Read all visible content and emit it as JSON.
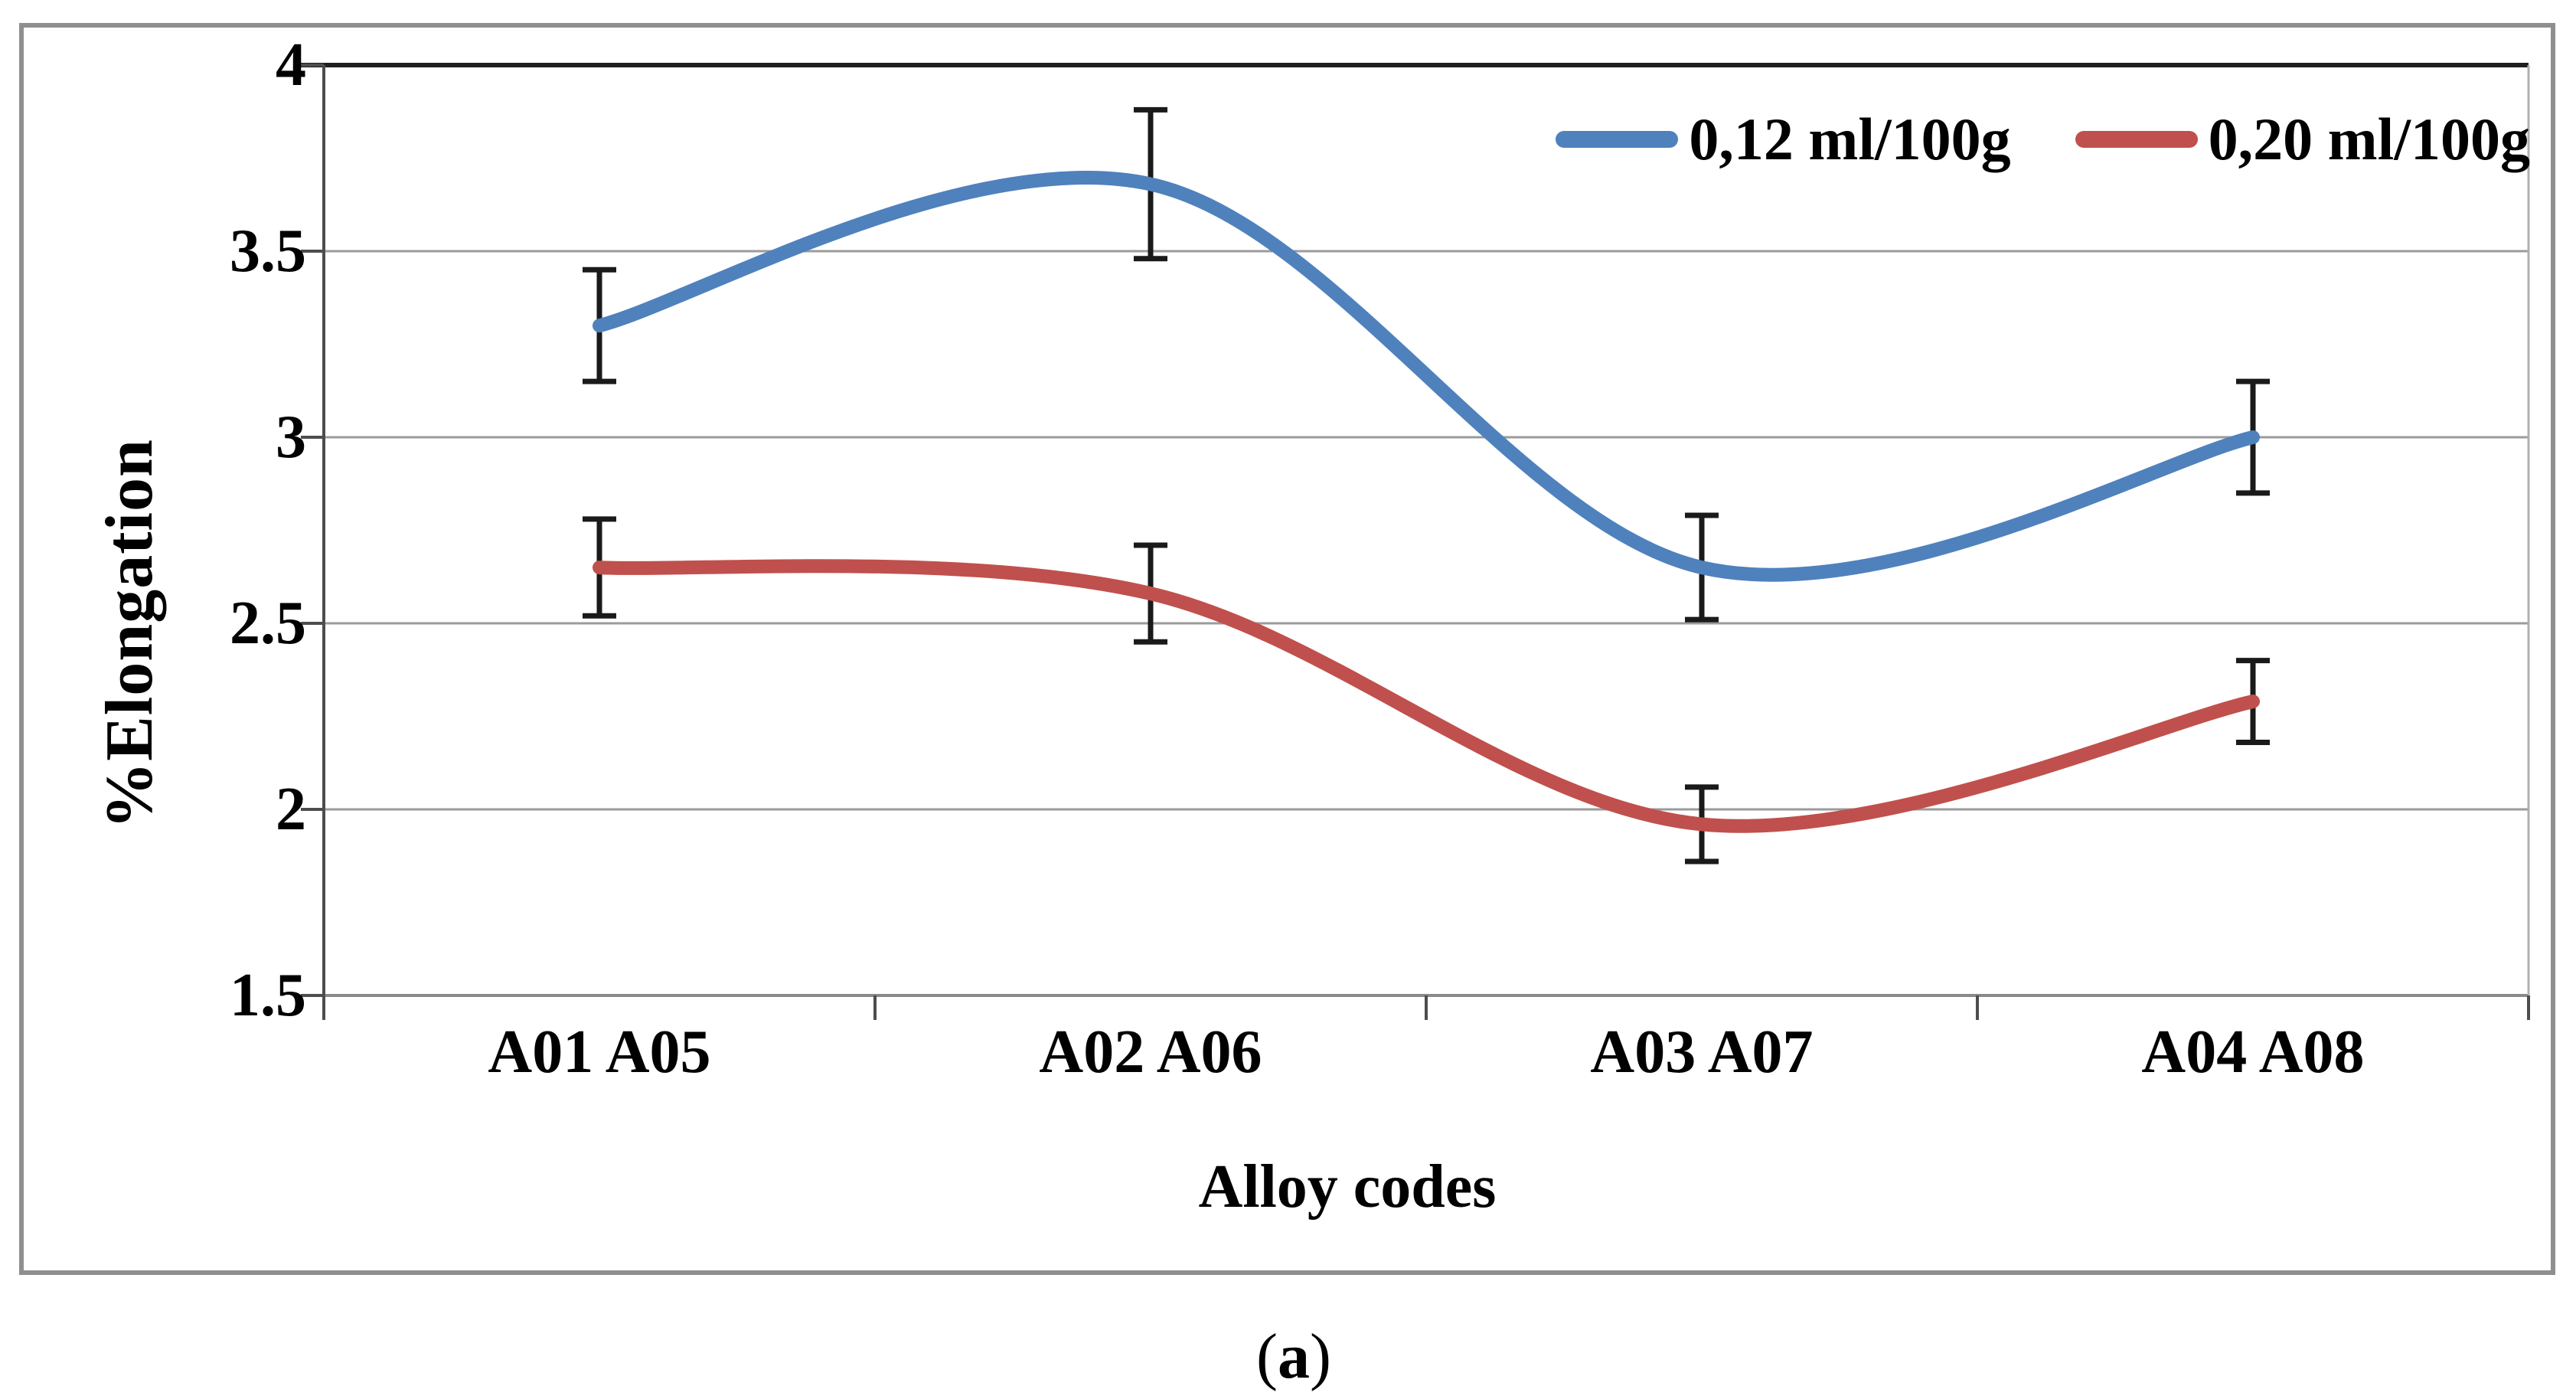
{
  "figure": {
    "caption": {
      "open": "(",
      "letter": "a",
      "close": ")"
    },
    "colors": {
      "series1": "#4F81BD",
      "series2": "#C0504D",
      "grid": "#9b9b9b",
      "baseline": "#8a8a8a",
      "top_border": "#1f1f1f",
      "axis": "#4d4d4d",
      "right_border": "#b0b0b0",
      "error_bar": "#1a1a1a",
      "frame": "#8f8f8f"
    }
  },
  "chart_data": {
    "type": "line",
    "smooth": true,
    "title": "",
    "xlabel": "Alloy codes",
    "ylabel": "%Elongation",
    "categories": [
      "A01 A05",
      "A02 A06",
      "A03 A07",
      "A04 A08"
    ],
    "y_ticks": [
      "4",
      "3.5",
      "3",
      "2.5",
      "2",
      "1.5"
    ],
    "y_tick_values": [
      4,
      3.5,
      3,
      2.5,
      2,
      1.5
    ],
    "ylim": [
      1.5,
      4
    ],
    "y_step": 0.5,
    "grid": "horizontal",
    "legend_position": "top-right-inside",
    "error_bars": true,
    "series": [
      {
        "name": "0,12 ml/100g",
        "color": "#4F81BD",
        "values": [
          3.3,
          3.68,
          2.65,
          3.0
        ],
        "error": [
          0.15,
          0.2,
          0.14,
          0.15
        ]
      },
      {
        "name": "0,20 ml/100g",
        "color": "#C0504D",
        "values": [
          2.65,
          2.58,
          1.96,
          2.29
        ],
        "error": [
          0.13,
          0.13,
          0.1,
          0.11
        ]
      }
    ]
  }
}
